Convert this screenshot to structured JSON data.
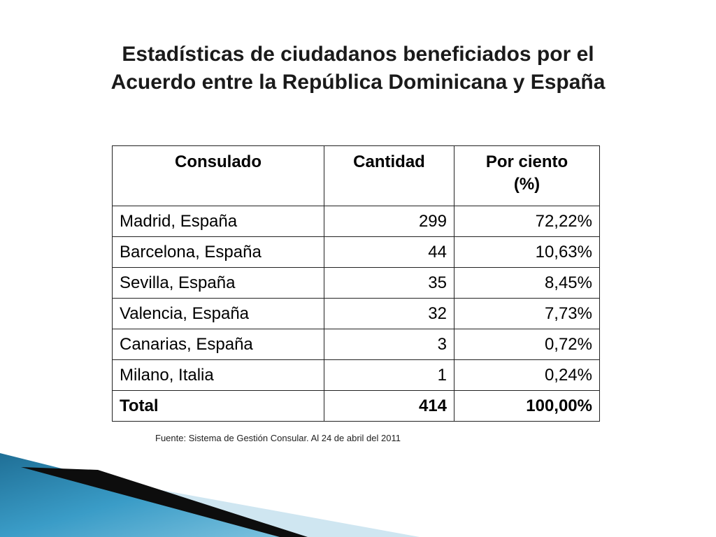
{
  "title": {
    "line1": "Estadísticas de ciudadanos beneficiados por el",
    "line2": "Acuerdo entre la República Dominicana y España"
  },
  "table": {
    "headers": {
      "consulado": "Consulado",
      "cantidad": "Cantidad",
      "porciento_line1": "Por ciento",
      "porciento_line2": "(%)"
    },
    "rows": [
      {
        "consulado": "Madrid, España",
        "cantidad": "299",
        "porciento": "72,22%"
      },
      {
        "consulado": "Barcelona, España",
        "cantidad": "44",
        "porciento": "10,63%"
      },
      {
        "consulado": "Sevilla, España",
        "cantidad": "35",
        "porciento": "8,45%"
      },
      {
        "consulado": "Valencia, España",
        "cantidad": "32",
        "porciento": "7,73%"
      },
      {
        "consulado": "Canarias, España",
        "cantidad": "3",
        "porciento": "0,72%"
      },
      {
        "consulado": "Milano, Italia",
        "cantidad": "1",
        "porciento": "0,24%"
      }
    ],
    "total": {
      "consulado": "Total",
      "cantidad": "414",
      "porciento": "100,00%"
    }
  },
  "source": "Fuente: Sistema de Gestión Consular. Al 24 de abril del 2011",
  "colors": {
    "decor_dark": "#0d0d0d",
    "decor_blue_dark": "#1f6f96",
    "decor_blue_light": "#7fc3df",
    "decor_pale": "#cfe6f1"
  }
}
